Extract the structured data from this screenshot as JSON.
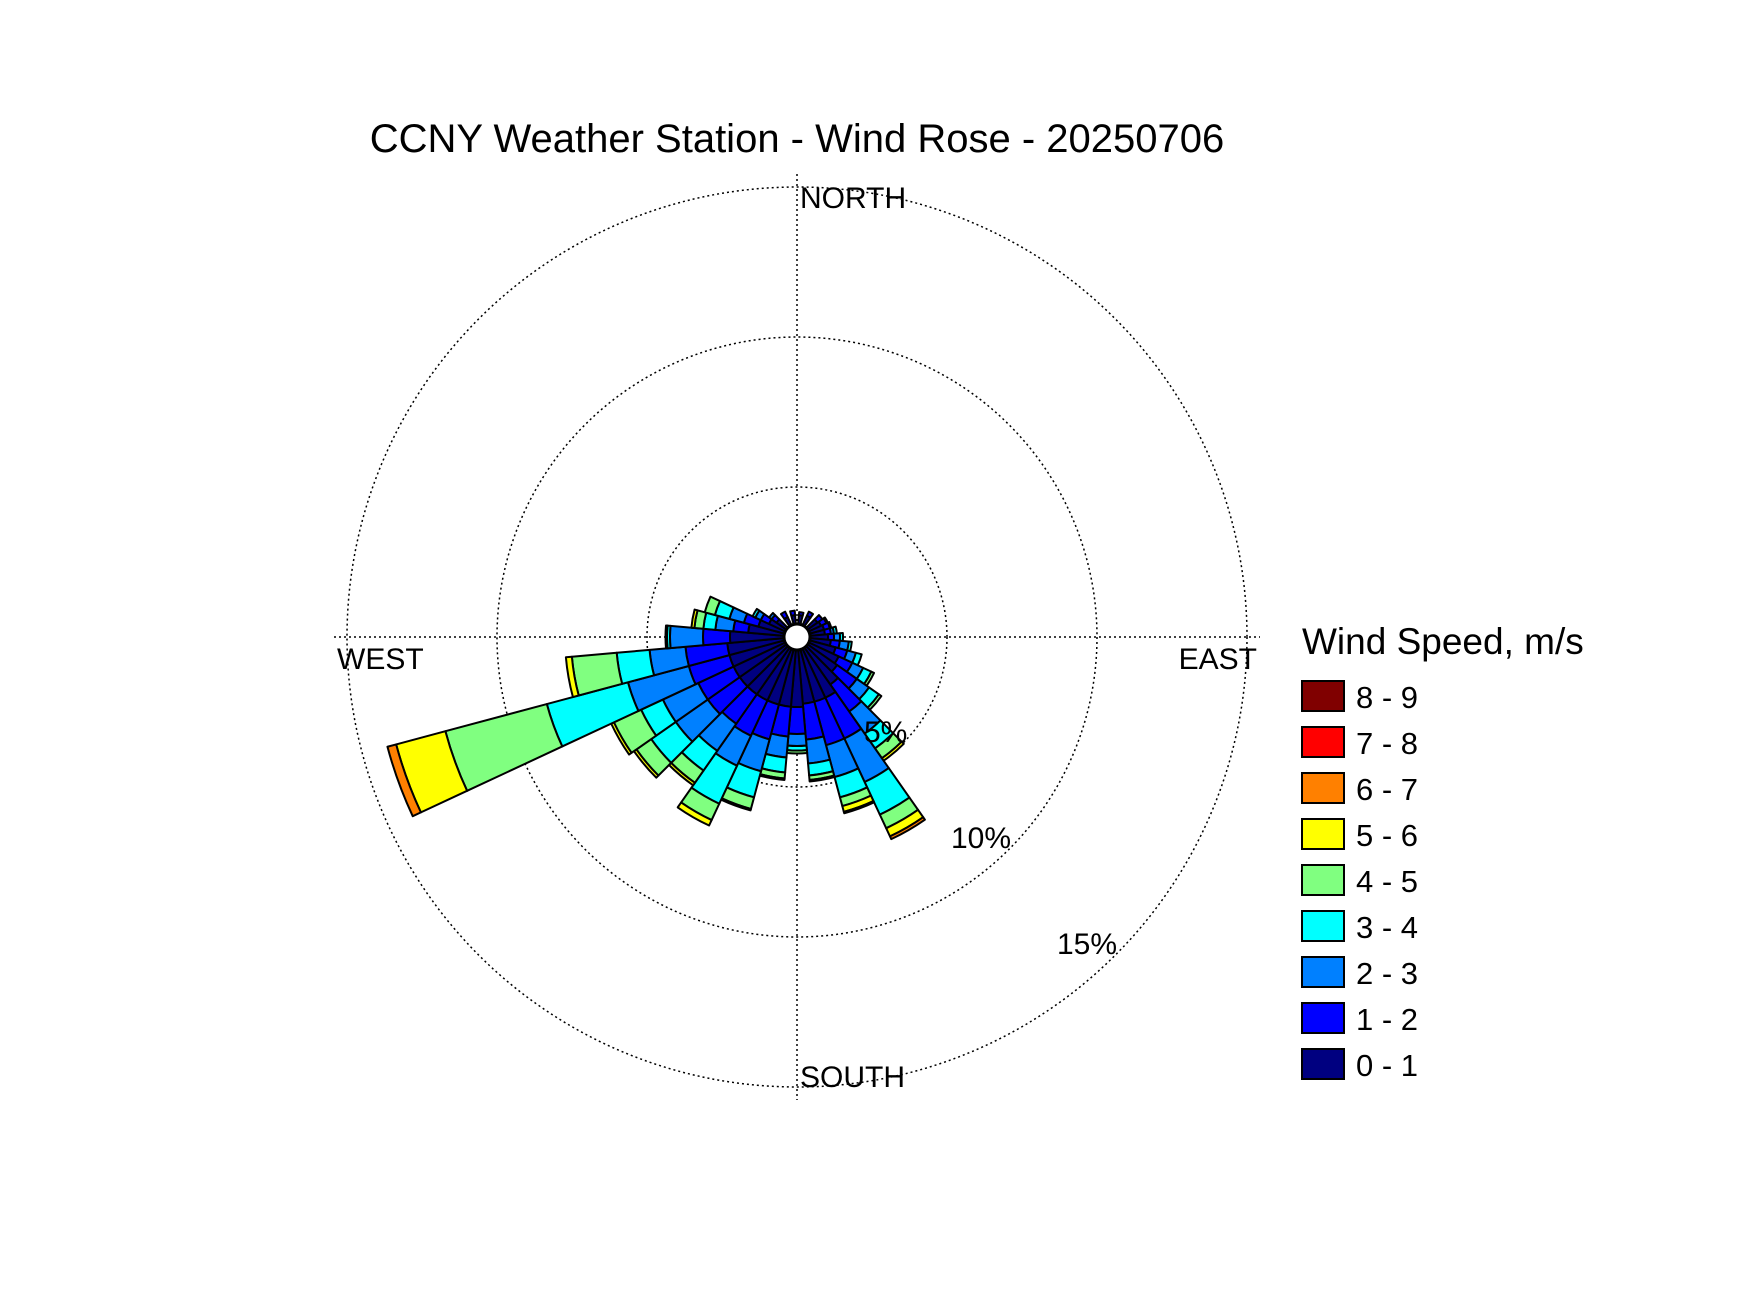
{
  "chart_data": {
    "type": "wind-rose",
    "title": "CCNY Weather Station - Wind Rose - 20250706",
    "directions": {
      "north": "NORTH",
      "south": "SOUTH",
      "east": "EAST",
      "west": "WEST"
    },
    "radial_rings": [
      {
        "value": 5,
        "label": "5%"
      },
      {
        "value": 10,
        "label": "10%"
      },
      {
        "value": 15,
        "label": "15%"
      }
    ],
    "legend": {
      "title": "Wind Speed, m/s",
      "bins": [
        {
          "label": "8 - 9",
          "color": "#800000"
        },
        {
          "label": "7 - 8",
          "color": "#ff0000"
        },
        {
          "label": "6 - 7",
          "color": "#ff8000"
        },
        {
          "label": "5 - 6",
          "color": "#ffff00"
        },
        {
          "label": "4 - 5",
          "color": "#80ff80"
        },
        {
          "label": "3 - 4",
          "color": "#00ffff"
        },
        {
          "label": "2 - 3",
          "color": "#0080ff"
        },
        {
          "label": "1 - 2",
          "color": "#0000ff"
        },
        {
          "label": "0 - 1",
          "color": "#000080"
        }
      ]
    },
    "sector_width_deg": 10,
    "bin_order": [
      "0 - 1",
      "1 - 2",
      "2 - 3",
      "3 - 4",
      "4 - 5",
      "5 - 6",
      "6 - 7",
      "7 - 8",
      "8 - 9"
    ],
    "sectors": [
      {
        "direction_deg": 80,
        "cumulative_percent": [
          0.5,
          0.7,
          0.8,
          0.9
        ]
      },
      {
        "direction_deg": 90,
        "cumulative_percent": [
          0.6,
          0.8,
          1.0,
          1.1
        ]
      },
      {
        "direction_deg": 100,
        "cumulative_percent": [
          0.7,
          1.0,
          1.3,
          1.4
        ]
      },
      {
        "direction_deg": 110,
        "cumulative_percent": [
          0.9,
          1.3,
          1.6,
          1.8
        ]
      },
      {
        "direction_deg": 120,
        "cumulative_percent": [
          1.1,
          1.6,
          2.0,
          2.3,
          2.4
        ]
      },
      {
        "direction_deg": 130,
        "cumulative_percent": [
          1.2,
          2.0,
          2.5,
          2.9,
          3.0
        ]
      },
      {
        "direction_deg": 140,
        "cumulative_percent": [
          1.5,
          2.6,
          3.5,
          4.1,
          4.5,
          4.6
        ]
      },
      {
        "direction_deg": 150,
        "cumulative_percent": [
          1.8,
          3.3,
          4.9,
          6.1,
          6.6,
          6.9,
          7.0
        ]
      },
      {
        "direction_deg": 160,
        "cumulative_percent": [
          1.8,
          3.3,
          4.4,
          5.1,
          5.4,
          5.6,
          5.65
        ]
      },
      {
        "direction_deg": 170,
        "cumulative_percent": [
          1.8,
          3.0,
          3.8,
          4.2,
          4.35,
          4.4
        ]
      },
      {
        "direction_deg": 180,
        "cumulative_percent": [
          1.9,
          2.8,
          3.2,
          3.35,
          3.45
        ]
      },
      {
        "direction_deg": 190,
        "cumulative_percent": [
          1.9,
          2.9,
          3.6,
          4.1,
          4.3,
          4.35
        ]
      },
      {
        "direction_deg": 200,
        "cumulative_percent": [
          1.9,
          3.1,
          4.2,
          5.1,
          5.5,
          5.55
        ]
      },
      {
        "direction_deg": 210,
        "cumulative_percent": [
          1.9,
          3.2,
          4.3,
          5.7,
          6.3,
          6.5
        ]
      },
      {
        "direction_deg": 220,
        "cumulative_percent": [
          1.9,
          3.1,
          4.2,
          5.0,
          5.5,
          5.6
        ]
      },
      {
        "direction_deg": 230,
        "cumulative_percent": [
          1.9,
          3.2,
          4.5,
          5.5,
          6.1,
          6.2
        ]
      },
      {
        "direction_deg": 240,
        "cumulative_percent": [
          1.9,
          3.2,
          4.5,
          5.3,
          6.3,
          6.4
        ]
      },
      {
        "direction_deg": 250,
        "cumulative_percent": [
          1.9,
          3.3,
          5.4,
          8.2,
          11.7,
          13.4,
          13.7
        ]
      },
      {
        "direction_deg": 260,
        "cumulative_percent": [
          1.9,
          3.3,
          4.5,
          5.6,
          7.1,
          7.3
        ]
      },
      {
        "direction_deg": 270,
        "cumulative_percent": [
          1.8,
          2.7,
          3.8,
          3.9,
          3.95
        ]
      },
      {
        "direction_deg": 280,
        "cumulative_percent": [
          1.2,
          1.7,
          2.3,
          2.7,
          3.0,
          3.1
        ]
      },
      {
        "direction_deg": 290,
        "cumulative_percent": [
          0.9,
          1.4,
          1.9,
          2.4,
          2.75
        ]
      },
      {
        "direction_deg": 300,
        "cumulative_percent": [
          0.6,
          0.9,
          1.1,
          1.2
        ]
      },
      {
        "direction_deg": 310,
        "cumulative_percent": [
          0.4,
          0.6,
          0.7
        ]
      },
      {
        "direction_deg": 330,
        "cumulative_percent": [
          0.3,
          0.5
        ]
      },
      {
        "direction_deg": 350,
        "cumulative_percent": [
          0.3,
          0.45
        ]
      },
      {
        "direction_deg": 10,
        "cumulative_percent": [
          0.3,
          0.4
        ]
      },
      {
        "direction_deg": 30,
        "cumulative_percent": [
          0.35,
          0.5
        ]
      },
      {
        "direction_deg": 50,
        "cumulative_percent": [
          0.4,
          0.6
        ]
      },
      {
        "direction_deg": 60,
        "cumulative_percent": [
          0.45,
          0.65,
          0.7
        ]
      },
      {
        "direction_deg": 70,
        "cumulative_percent": [
          0.5,
          0.7,
          0.75
        ]
      }
    ]
  }
}
